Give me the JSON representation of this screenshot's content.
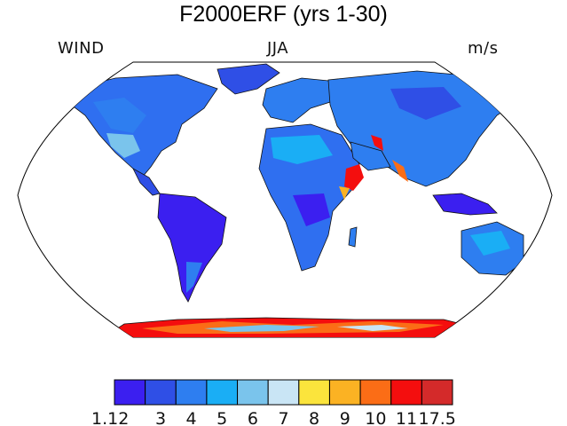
{
  "title": "F2000ERF (yrs 1-30)",
  "left_label": "WIND",
  "center_label": "JJA",
  "right_label": "m/s",
  "colorbar": {
    "colors": [
      "#3b1ff0",
      "#2f4fe6",
      "#2e7ef0",
      "#1aaef5",
      "#7ac4ec",
      "#c9e5f5",
      "#fbe43c",
      "#fbb223",
      "#fb6d16",
      "#f40e0e",
      "#d42a2a"
    ],
    "tick_labels": [
      "1.12",
      "3",
      "4",
      "5",
      "6",
      "7",
      "8",
      "9",
      "10",
      "11",
      "17.5"
    ]
  }
}
